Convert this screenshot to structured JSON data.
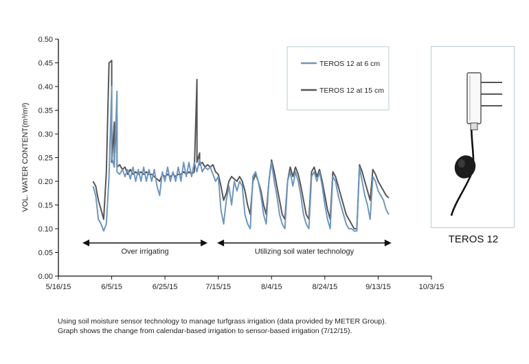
{
  "chart_data": {
    "type": "line",
    "ylabel": "VOL. WATER CONTENT(m³/m³)",
    "xlabel": "",
    "x_ticks": [
      "5/16/15",
      "6/5/15",
      "6/25/15",
      "7/15/15",
      "8/4/15",
      "8/24/15",
      "9/13/15",
      "10/3/15"
    ],
    "y_ticks": [
      "0.00",
      "0.05",
      "0.10",
      "0.15",
      "0.20",
      "0.25",
      "0.30",
      "0.35",
      "0.40",
      "0.45",
      "0.50"
    ],
    "xlim": [
      "5/16/15",
      "10/3/15"
    ],
    "ylim": [
      0,
      0.5
    ],
    "legend_position": "top-right",
    "series": [
      {
        "name": "TEROS 12 at 6 cm",
        "color": "#6f96bd",
        "points": [
          [
            "5/29/15",
            0.19
          ],
          [
            "5/30/15",
            0.17
          ],
          [
            "5/31/15",
            0.12
          ],
          [
            "6/1/15",
            0.11
          ],
          [
            "6/2/15",
            0.095
          ],
          [
            "6/3/15",
            0.11
          ],
          [
            "6/4/15",
            0.21
          ],
          [
            "6/5/15",
            0.4
          ],
          [
            "6/5/15",
            0.25
          ],
          [
            "6/6/15",
            0.23
          ],
          [
            "6/7/15",
            0.39
          ],
          [
            "6/7/15",
            0.22
          ],
          [
            "6/8/15",
            0.215
          ],
          [
            "6/9/15",
            0.225
          ],
          [
            "6/10/15",
            0.21
          ],
          [
            "6/11/15",
            0.225
          ],
          [
            "6/12/15",
            0.205
          ],
          [
            "6/13/15",
            0.23
          ],
          [
            "6/14/15",
            0.2
          ],
          [
            "6/15/15",
            0.225
          ],
          [
            "6/16/15",
            0.2
          ],
          [
            "6/17/15",
            0.23
          ],
          [
            "6/18/15",
            0.2
          ],
          [
            "6/19/15",
            0.225
          ],
          [
            "6/20/15",
            0.2
          ],
          [
            "6/21/15",
            0.225
          ],
          [
            "6/22/15",
            0.19
          ],
          [
            "6/23/15",
            0.17
          ],
          [
            "6/24/15",
            0.22
          ],
          [
            "6/25/15",
            0.2
          ],
          [
            "6/26/15",
            0.23
          ],
          [
            "6/27/15",
            0.2
          ],
          [
            "6/28/15",
            0.22
          ],
          [
            "6/29/15",
            0.2
          ],
          [
            "6/30/15",
            0.23
          ],
          [
            "7/1/15",
            0.2
          ],
          [
            "7/2/15",
            0.24
          ],
          [
            "7/3/15",
            0.21
          ],
          [
            "7/4/15",
            0.24
          ],
          [
            "7/5/15",
            0.21
          ],
          [
            "7/6/15",
            0.24
          ],
          [
            "7/7/15",
            0.22
          ],
          [
            "7/8/15",
            0.245
          ],
          [
            "7/9/15",
            0.22
          ],
          [
            "7/10/15",
            0.23
          ],
          [
            "7/11/15",
            0.225
          ],
          [
            "7/12/15",
            0.23
          ],
          [
            "7/13/15",
            0.215
          ],
          [
            "7/14/15",
            0.2
          ],
          [
            "7/15/15",
            0.21
          ],
          [
            "7/16/15",
            0.14
          ],
          [
            "7/17/15",
            0.11
          ],
          [
            "7/18/15",
            0.16
          ],
          [
            "7/19/15",
            0.19
          ],
          [
            "7/20/15",
            0.15
          ],
          [
            "7/21/15",
            0.2
          ],
          [
            "7/22/15",
            0.18
          ],
          [
            "7/23/15",
            0.2
          ],
          [
            "7/24/15",
            0.19
          ],
          [
            "7/25/15",
            0.13
          ],
          [
            "7/26/15",
            0.11
          ],
          [
            "7/27/15",
            0.1
          ],
          [
            "7/28/15",
            0.21
          ],
          [
            "7/29/15",
            0.22
          ],
          [
            "7/30/15",
            0.2
          ],
          [
            "7/31/15",
            0.17
          ],
          [
            "8/1/15",
            0.13
          ],
          [
            "8/2/15",
            0.11
          ],
          [
            "8/3/15",
            0.2
          ],
          [
            "8/4/15",
            0.24
          ],
          [
            "8/5/15",
            0.2
          ],
          [
            "8/6/15",
            0.17
          ],
          [
            "8/7/15",
            0.13
          ],
          [
            "8/8/15",
            0.11
          ],
          [
            "8/9/15",
            0.1
          ],
          [
            "8/10/15",
            0.2
          ],
          [
            "8/11/15",
            0.22
          ],
          [
            "8/12/15",
            0.19
          ],
          [
            "8/13/15",
            0.22
          ],
          [
            "8/14/15",
            0.2
          ],
          [
            "8/15/15",
            0.17
          ],
          [
            "8/16/15",
            0.13
          ],
          [
            "8/17/15",
            0.11
          ],
          [
            "8/18/15",
            0.1
          ],
          [
            "8/19/15",
            0.21
          ],
          [
            "8/20/15",
            0.22
          ],
          [
            "8/21/15",
            0.2
          ],
          [
            "8/22/15",
            0.22
          ],
          [
            "8/23/15",
            0.19
          ],
          [
            "8/24/15",
            0.15
          ],
          [
            "8/25/15",
            0.12
          ],
          [
            "8/26/15",
            0.1
          ],
          [
            "8/27/15",
            0.21
          ],
          [
            "8/28/15",
            0.2
          ],
          [
            "8/29/15",
            0.17
          ],
          [
            "8/30/15",
            0.15
          ],
          [
            "8/31/15",
            0.13
          ],
          [
            "9/1/15",
            0.11
          ],
          [
            "9/2/15",
            0.1
          ],
          [
            "9/3/15",
            0.1
          ],
          [
            "9/4/15",
            0.095
          ],
          [
            "9/5/15",
            0.095
          ],
          [
            "9/6/15",
            0.23
          ],
          [
            "9/7/15",
            0.2
          ],
          [
            "9/8/15",
            0.17
          ],
          [
            "9/9/15",
            0.15
          ],
          [
            "9/10/15",
            0.12
          ],
          [
            "9/11/15",
            0.21
          ],
          [
            "9/12/15",
            0.2
          ],
          [
            "9/13/15",
            0.18
          ],
          [
            "9/14/15",
            0.17
          ],
          [
            "9/15/15",
            0.16
          ],
          [
            "9/16/15",
            0.14
          ],
          [
            "9/17/15",
            0.13
          ]
        ]
      },
      {
        "name": "TEROS 12 at 15 cm",
        "color": "#555555",
        "points": [
          [
            "5/29/15",
            0.2
          ],
          [
            "5/30/15",
            0.19
          ],
          [
            "5/31/15",
            0.16
          ],
          [
            "6/1/15",
            0.14
          ],
          [
            "6/2/15",
            0.12
          ],
          [
            "6/3/15",
            0.22
          ],
          [
            "6/4/15",
            0.45
          ],
          [
            "6/5/15",
            0.455
          ],
          [
            "6/5/15",
            0.24
          ],
          [
            "6/6/15",
            0.325
          ],
          [
            "6/6/15",
            0.24
          ],
          [
            "6/7/15",
            0.34
          ],
          [
            "6/7/15",
            0.23
          ],
          [
            "6/8/15",
            0.235
          ],
          [
            "6/9/15",
            0.225
          ],
          [
            "6/10/15",
            0.23
          ],
          [
            "6/11/15",
            0.215
          ],
          [
            "6/12/15",
            0.225
          ],
          [
            "6/13/15",
            0.215
          ],
          [
            "6/14/15",
            0.22
          ],
          [
            "6/15/15",
            0.215
          ],
          [
            "6/16/15",
            0.22
          ],
          [
            "6/17/15",
            0.215
          ],
          [
            "6/18/15",
            0.22
          ],
          [
            "6/19/15",
            0.215
          ],
          [
            "6/20/15",
            0.215
          ],
          [
            "6/21/15",
            0.21
          ],
          [
            "6/22/15",
            0.205
          ],
          [
            "6/23/15",
            0.2
          ],
          [
            "6/24/15",
            0.215
          ],
          [
            "6/25/15",
            0.21
          ],
          [
            "6/26/15",
            0.215
          ],
          [
            "6/27/15",
            0.21
          ],
          [
            "6/28/15",
            0.215
          ],
          [
            "6/29/15",
            0.21
          ],
          [
            "6/30/15",
            0.215
          ],
          [
            "7/1/15",
            0.215
          ],
          [
            "7/2/15",
            0.22
          ],
          [
            "7/3/15",
            0.215
          ],
          [
            "7/4/15",
            0.22
          ],
          [
            "7/5/15",
            0.215
          ],
          [
            "7/6/15",
            0.22
          ],
          [
            "7/7/15",
            0.415
          ],
          [
            "7/7/15",
            0.24
          ],
          [
            "7/8/15",
            0.26
          ],
          [
            "7/8/15",
            0.235
          ],
          [
            "7/9/15",
            0.24
          ],
          [
            "7/10/15",
            0.23
          ],
          [
            "7/11/15",
            0.235
          ],
          [
            "7/12/15",
            0.23
          ],
          [
            "7/13/15",
            0.235
          ],
          [
            "7/14/15",
            0.22
          ],
          [
            "7/15/15",
            0.215
          ],
          [
            "7/16/15",
            0.19
          ],
          [
            "7/17/15",
            0.16
          ],
          [
            "7/18/15",
            0.175
          ],
          [
            "7/19/15",
            0.2
          ],
          [
            "7/20/15",
            0.21
          ],
          [
            "7/21/15",
            0.205
          ],
          [
            "7/22/15",
            0.2
          ],
          [
            "7/23/15",
            0.21
          ],
          [
            "7/24/15",
            0.2
          ],
          [
            "7/25/15",
            0.18
          ],
          [
            "7/26/15",
            0.15
          ],
          [
            "7/27/15",
            0.13
          ],
          [
            "7/28/15",
            0.2
          ],
          [
            "7/29/15",
            0.215
          ],
          [
            "7/30/15",
            0.2
          ],
          [
            "7/31/15",
            0.18
          ],
          [
            "8/1/15",
            0.15
          ],
          [
            "8/2/15",
            0.13
          ],
          [
            "8/3/15",
            0.2
          ],
          [
            "8/4/15",
            0.245
          ],
          [
            "8/5/15",
            0.22
          ],
          [
            "8/6/15",
            0.19
          ],
          [
            "8/7/15",
            0.16
          ],
          [
            "8/8/15",
            0.13
          ],
          [
            "8/9/15",
            0.12
          ],
          [
            "8/10/15",
            0.2
          ],
          [
            "8/11/15",
            0.23
          ],
          [
            "8/12/15",
            0.21
          ],
          [
            "8/13/15",
            0.23
          ],
          [
            "8/14/15",
            0.215
          ],
          [
            "8/15/15",
            0.19
          ],
          [
            "8/16/15",
            0.16
          ],
          [
            "8/17/15",
            0.13
          ],
          [
            "8/18/15",
            0.12
          ],
          [
            "8/19/15",
            0.22
          ],
          [
            "8/20/15",
            0.23
          ],
          [
            "8/21/15",
            0.21
          ],
          [
            "8/22/15",
            0.225
          ],
          [
            "8/23/15",
            0.2
          ],
          [
            "8/24/15",
            0.17
          ],
          [
            "8/25/15",
            0.14
          ],
          [
            "8/26/15",
            0.12
          ],
          [
            "8/27/15",
            0.22
          ],
          [
            "8/28/15",
            0.21
          ],
          [
            "8/29/15",
            0.19
          ],
          [
            "8/30/15",
            0.17
          ],
          [
            "8/31/15",
            0.15
          ],
          [
            "9/1/15",
            0.13
          ],
          [
            "9/2/15",
            0.12
          ],
          [
            "9/3/15",
            0.11
          ],
          [
            "9/4/15",
            0.1
          ],
          [
            "9/5/15",
            0.1
          ],
          [
            "9/6/15",
            0.235
          ],
          [
            "9/7/15",
            0.22
          ],
          [
            "9/8/15",
            0.2
          ],
          [
            "9/9/15",
            0.18
          ],
          [
            "9/10/15",
            0.16
          ],
          [
            "9/11/15",
            0.225
          ],
          [
            "9/12/15",
            0.215
          ],
          [
            "9/13/15",
            0.2
          ],
          [
            "9/14/15",
            0.19
          ],
          [
            "9/15/15",
            0.18
          ],
          [
            "9/16/15",
            0.17
          ],
          [
            "9/17/15",
            0.165
          ]
        ]
      }
    ],
    "annotations": [
      {
        "text": "Over irrigating",
        "from": "5/24/15",
        "to": "7/12/15",
        "y": 0.07
      },
      {
        "text": "Utilizing soil water technology",
        "from": "7/12/15",
        "to": "9/18/15",
        "y": 0.07
      }
    ]
  },
  "sensor": {
    "label": "TEROS 12"
  },
  "caption": {
    "line1": "Using soil moisture sensor technology to manage turfgrass irrigation (data provided by METER Group).",
    "line2": "Graph shows the change from calendar-based irrigation to sensor-based irrigation (7/12/15)."
  }
}
